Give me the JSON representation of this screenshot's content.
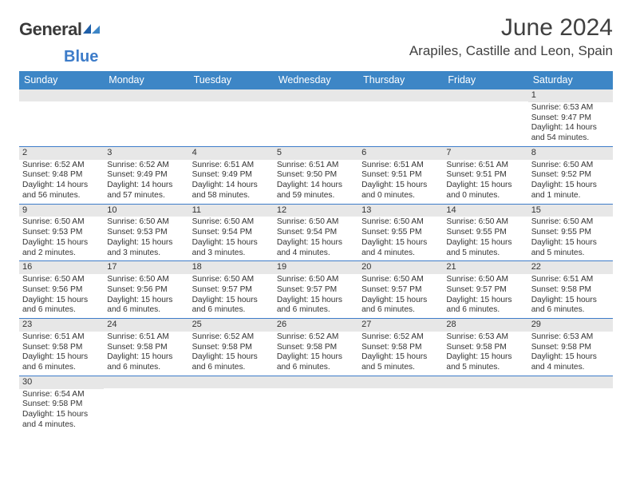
{
  "brand": {
    "main": "General",
    "sub": "Blue"
  },
  "title": "June 2024",
  "location": "Arapiles, Castille and Leon, Spain",
  "weekdays": [
    "Sunday",
    "Monday",
    "Tuesday",
    "Wednesday",
    "Thursday",
    "Friday",
    "Saturday"
  ],
  "colors": {
    "header_bg": "#3d86c6",
    "header_text": "#ffffff",
    "daynum_bg": "#e7e7e7",
    "row_border": "#3d7cc9",
    "text": "#333333",
    "logo_blue": "#3d7cc9"
  },
  "typography": {
    "title_fontsize": 30,
    "location_fontsize": 17,
    "weekday_fontsize": 12.5,
    "body_fontsize": 10.2
  },
  "weeks": [
    [
      null,
      null,
      null,
      null,
      null,
      null,
      {
        "n": "1",
        "sunrise": "Sunrise: 6:53 AM",
        "sunset": "Sunset: 9:47 PM",
        "daylight": "Daylight: 14 hours and 54 minutes."
      }
    ],
    [
      {
        "n": "2",
        "sunrise": "Sunrise: 6:52 AM",
        "sunset": "Sunset: 9:48 PM",
        "daylight": "Daylight: 14 hours and 56 minutes."
      },
      {
        "n": "3",
        "sunrise": "Sunrise: 6:52 AM",
        "sunset": "Sunset: 9:49 PM",
        "daylight": "Daylight: 14 hours and 57 minutes."
      },
      {
        "n": "4",
        "sunrise": "Sunrise: 6:51 AM",
        "sunset": "Sunset: 9:49 PM",
        "daylight": "Daylight: 14 hours and 58 minutes."
      },
      {
        "n": "5",
        "sunrise": "Sunrise: 6:51 AM",
        "sunset": "Sunset: 9:50 PM",
        "daylight": "Daylight: 14 hours and 59 minutes."
      },
      {
        "n": "6",
        "sunrise": "Sunrise: 6:51 AM",
        "sunset": "Sunset: 9:51 PM",
        "daylight": "Daylight: 15 hours and 0 minutes."
      },
      {
        "n": "7",
        "sunrise": "Sunrise: 6:51 AM",
        "sunset": "Sunset: 9:51 PM",
        "daylight": "Daylight: 15 hours and 0 minutes."
      },
      {
        "n": "8",
        "sunrise": "Sunrise: 6:50 AM",
        "sunset": "Sunset: 9:52 PM",
        "daylight": "Daylight: 15 hours and 1 minute."
      }
    ],
    [
      {
        "n": "9",
        "sunrise": "Sunrise: 6:50 AM",
        "sunset": "Sunset: 9:53 PM",
        "daylight": "Daylight: 15 hours and 2 minutes."
      },
      {
        "n": "10",
        "sunrise": "Sunrise: 6:50 AM",
        "sunset": "Sunset: 9:53 PM",
        "daylight": "Daylight: 15 hours and 3 minutes."
      },
      {
        "n": "11",
        "sunrise": "Sunrise: 6:50 AM",
        "sunset": "Sunset: 9:54 PM",
        "daylight": "Daylight: 15 hours and 3 minutes."
      },
      {
        "n": "12",
        "sunrise": "Sunrise: 6:50 AM",
        "sunset": "Sunset: 9:54 PM",
        "daylight": "Daylight: 15 hours and 4 minutes."
      },
      {
        "n": "13",
        "sunrise": "Sunrise: 6:50 AM",
        "sunset": "Sunset: 9:55 PM",
        "daylight": "Daylight: 15 hours and 4 minutes."
      },
      {
        "n": "14",
        "sunrise": "Sunrise: 6:50 AM",
        "sunset": "Sunset: 9:55 PM",
        "daylight": "Daylight: 15 hours and 5 minutes."
      },
      {
        "n": "15",
        "sunrise": "Sunrise: 6:50 AM",
        "sunset": "Sunset: 9:55 PM",
        "daylight": "Daylight: 15 hours and 5 minutes."
      }
    ],
    [
      {
        "n": "16",
        "sunrise": "Sunrise: 6:50 AM",
        "sunset": "Sunset: 9:56 PM",
        "daylight": "Daylight: 15 hours and 6 minutes."
      },
      {
        "n": "17",
        "sunrise": "Sunrise: 6:50 AM",
        "sunset": "Sunset: 9:56 PM",
        "daylight": "Daylight: 15 hours and 6 minutes."
      },
      {
        "n": "18",
        "sunrise": "Sunrise: 6:50 AM",
        "sunset": "Sunset: 9:57 PM",
        "daylight": "Daylight: 15 hours and 6 minutes."
      },
      {
        "n": "19",
        "sunrise": "Sunrise: 6:50 AM",
        "sunset": "Sunset: 9:57 PM",
        "daylight": "Daylight: 15 hours and 6 minutes."
      },
      {
        "n": "20",
        "sunrise": "Sunrise: 6:50 AM",
        "sunset": "Sunset: 9:57 PM",
        "daylight": "Daylight: 15 hours and 6 minutes."
      },
      {
        "n": "21",
        "sunrise": "Sunrise: 6:50 AM",
        "sunset": "Sunset: 9:57 PM",
        "daylight": "Daylight: 15 hours and 6 minutes."
      },
      {
        "n": "22",
        "sunrise": "Sunrise: 6:51 AM",
        "sunset": "Sunset: 9:58 PM",
        "daylight": "Daylight: 15 hours and 6 minutes."
      }
    ],
    [
      {
        "n": "23",
        "sunrise": "Sunrise: 6:51 AM",
        "sunset": "Sunset: 9:58 PM",
        "daylight": "Daylight: 15 hours and 6 minutes."
      },
      {
        "n": "24",
        "sunrise": "Sunrise: 6:51 AM",
        "sunset": "Sunset: 9:58 PM",
        "daylight": "Daylight: 15 hours and 6 minutes."
      },
      {
        "n": "25",
        "sunrise": "Sunrise: 6:52 AM",
        "sunset": "Sunset: 9:58 PM",
        "daylight": "Daylight: 15 hours and 6 minutes."
      },
      {
        "n": "26",
        "sunrise": "Sunrise: 6:52 AM",
        "sunset": "Sunset: 9:58 PM",
        "daylight": "Daylight: 15 hours and 6 minutes."
      },
      {
        "n": "27",
        "sunrise": "Sunrise: 6:52 AM",
        "sunset": "Sunset: 9:58 PM",
        "daylight": "Daylight: 15 hours and 5 minutes."
      },
      {
        "n": "28",
        "sunrise": "Sunrise: 6:53 AM",
        "sunset": "Sunset: 9:58 PM",
        "daylight": "Daylight: 15 hours and 5 minutes."
      },
      {
        "n": "29",
        "sunrise": "Sunrise: 6:53 AM",
        "sunset": "Sunset: 9:58 PM",
        "daylight": "Daylight: 15 hours and 4 minutes."
      }
    ],
    [
      {
        "n": "30",
        "sunrise": "Sunrise: 6:54 AM",
        "sunset": "Sunset: 9:58 PM",
        "daylight": "Daylight: 15 hours and 4 minutes."
      },
      null,
      null,
      null,
      null,
      null,
      null
    ]
  ]
}
